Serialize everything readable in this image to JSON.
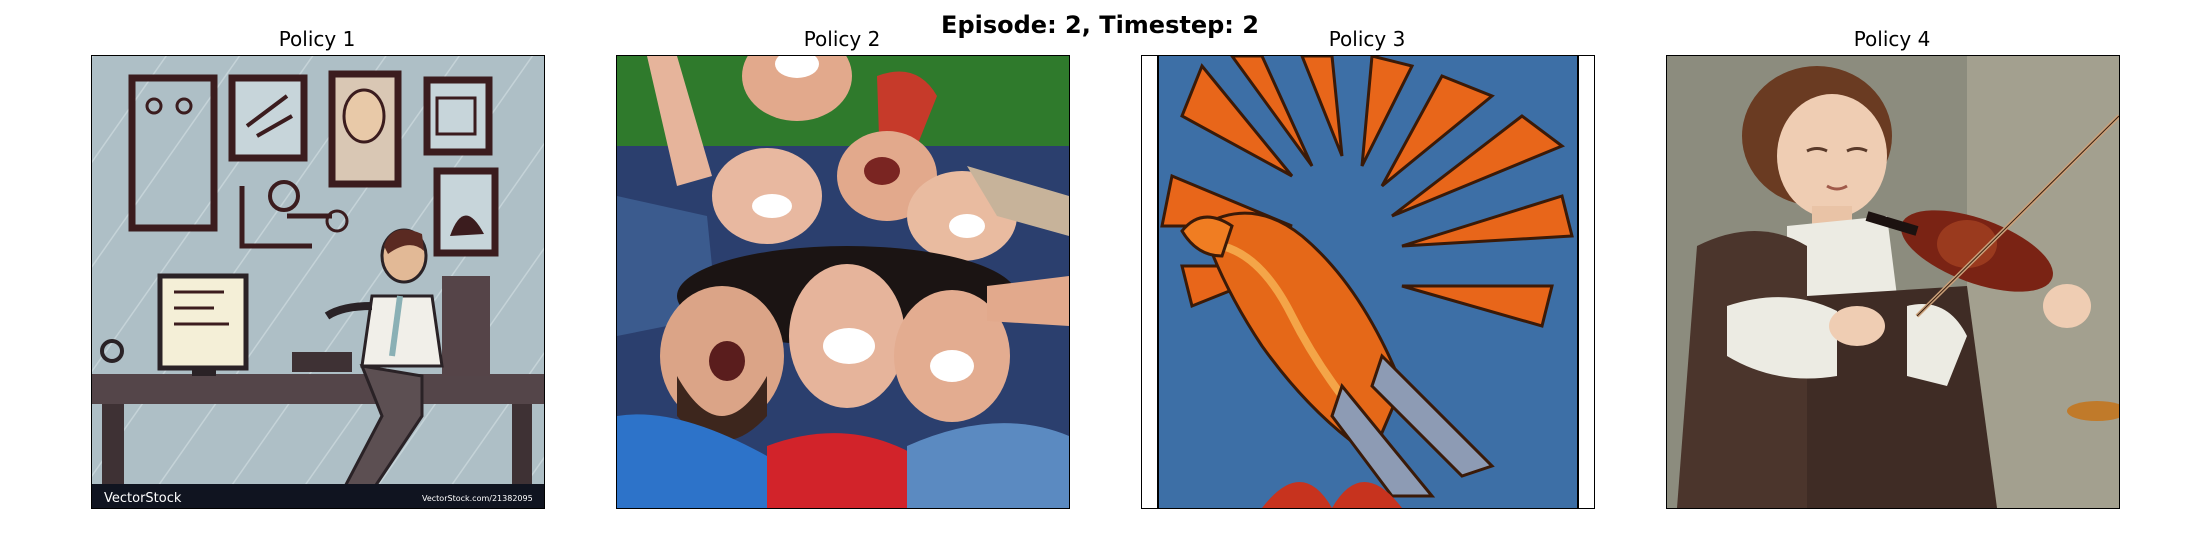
{
  "figure": {
    "title": "Episode: 2, Timestep: 2"
  },
  "panels": [
    {
      "title": "Policy 1",
      "image": "office-illustration",
      "watermark_left": "VectorStock",
      "watermark_right": "VectorStock.com/21382095"
    },
    {
      "title": "Policy 2",
      "image": "laughing-friends-photo"
    },
    {
      "title": "Policy 3",
      "image": "phoenix-illustration"
    },
    {
      "title": "Policy 4",
      "image": "violinist-painting"
    }
  ]
}
